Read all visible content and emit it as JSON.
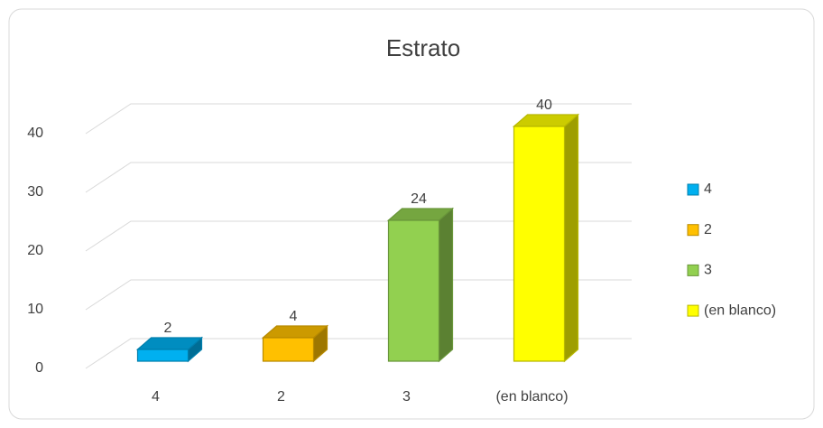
{
  "chart_data": {
    "type": "bar",
    "title": "Estrato",
    "categories": [
      "4",
      "2",
      "3",
      "(en blanco)"
    ],
    "values": [
      2,
      4,
      24,
      40
    ],
    "colors": [
      "#00b0f0",
      "#ffc000",
      "#92d050",
      "#ffff00"
    ],
    "ylim": [
      0,
      40
    ],
    "yticks": [
      0,
      10,
      20,
      30,
      40
    ],
    "grid": true,
    "legend": "right"
  }
}
